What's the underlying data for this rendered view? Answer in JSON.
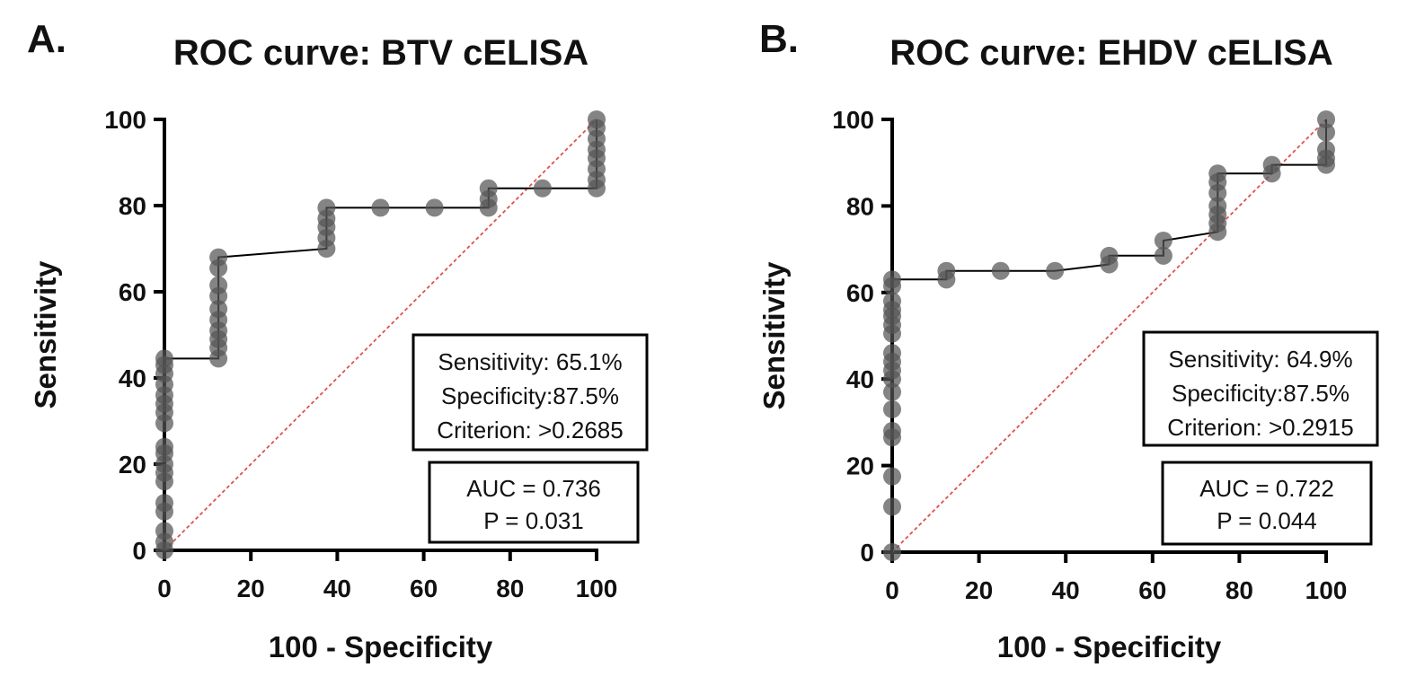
{
  "chart_data": [
    {
      "type": "line",
      "panel_letter": "A.",
      "title": "ROC curve: BTV cELISA",
      "xlabel": "100 - Specificity",
      "ylabel": "Sensitivity",
      "xlim": [
        0,
        100
      ],
      "ylim": [
        0,
        100
      ],
      "x_ticks": [
        "0",
        "20",
        "40",
        "60",
        "80",
        "100"
      ],
      "y_ticks": [
        "0",
        "20",
        "40",
        "60",
        "80",
        "100"
      ],
      "grid": false,
      "reference_line_color": "#e05050",
      "curve_color": "#000000",
      "marker_color": "#555555",
      "roc_points": [
        [
          0,
          0
        ],
        [
          0,
          2
        ],
        [
          0,
          4.5
        ],
        [
          0,
          9
        ],
        [
          0,
          11
        ],
        [
          0,
          16
        ],
        [
          0,
          18
        ],
        [
          0,
          20
        ],
        [
          0,
          22.5
        ],
        [
          0,
          24
        ],
        [
          0,
          29.5
        ],
        [
          0,
          32
        ],
        [
          0,
          34
        ],
        [
          0,
          36
        ],
        [
          0,
          38.5
        ],
        [
          0,
          41
        ],
        [
          0,
          43
        ],
        [
          0,
          44.5
        ],
        [
          12.5,
          44.5
        ],
        [
          12.5,
          47
        ],
        [
          12.5,
          49
        ],
        [
          12.5,
          51
        ],
        [
          12.5,
          53.5
        ],
        [
          12.5,
          56
        ],
        [
          12.5,
          59
        ],
        [
          12.5,
          61.5
        ],
        [
          12.5,
          65.5
        ],
        [
          12.5,
          68
        ],
        [
          37.5,
          70
        ],
        [
          37.5,
          72.5
        ],
        [
          37.5,
          75
        ],
        [
          37.5,
          77
        ],
        [
          37.5,
          79.5
        ],
        [
          50,
          79.5
        ],
        [
          62.5,
          79.5
        ],
        [
          75,
          79.5
        ],
        [
          75,
          81.5
        ],
        [
          75,
          84
        ],
        [
          87.5,
          84
        ],
        [
          100,
          84
        ],
        [
          100,
          86
        ],
        [
          100,
          88.5
        ],
        [
          100,
          91
        ],
        [
          100,
          93
        ],
        [
          100,
          95.5
        ],
        [
          100,
          98
        ],
        [
          100,
          100
        ]
      ],
      "stats_box": [
        "Sensitivity: 65.1%",
        "Specificity:87.5%",
        "Criterion: >0.2685"
      ],
      "auc_box": [
        "AUC = 0.736",
        "P = 0.031"
      ]
    },
    {
      "type": "line",
      "panel_letter": "B.",
      "title": "ROC curve: EHDV cELISA",
      "xlabel": "100 - Specificity",
      "ylabel": "Sensitivity",
      "xlim": [
        0,
        100
      ],
      "ylim": [
        0,
        100
      ],
      "x_ticks": [
        "0",
        "20",
        "40",
        "60",
        "80",
        "100"
      ],
      "y_ticks": [
        "0",
        "20",
        "40",
        "60",
        "80",
        "100"
      ],
      "grid": false,
      "reference_line_color": "#e05050",
      "curve_color": "#000000",
      "marker_color": "#555555",
      "roc_points": [
        [
          0,
          0
        ],
        [
          0,
          10.5
        ],
        [
          0,
          17.5
        ],
        [
          0,
          26.5
        ],
        [
          0,
          28
        ],
        [
          0,
          33
        ],
        [
          0,
          37
        ],
        [
          0,
          40
        ],
        [
          0,
          42
        ],
        [
          0,
          44
        ],
        [
          0,
          46
        ],
        [
          0,
          50.5
        ],
        [
          0,
          52.5
        ],
        [
          0,
          54.5
        ],
        [
          0,
          56
        ],
        [
          0,
          58
        ],
        [
          0,
          61.5
        ],
        [
          0,
          63
        ],
        [
          12.5,
          63
        ],
        [
          12.5,
          65
        ],
        [
          25,
          65
        ],
        [
          37.5,
          65
        ],
        [
          50,
          66.5
        ],
        [
          50,
          68.5
        ],
        [
          62.5,
          68.5
        ],
        [
          62.5,
          72
        ],
        [
          75,
          74
        ],
        [
          75,
          76
        ],
        [
          75,
          78
        ],
        [
          75,
          80
        ],
        [
          75,
          83
        ],
        [
          75,
          85.5
        ],
        [
          75,
          87.5
        ],
        [
          87.5,
          87.5
        ],
        [
          87.5,
          89.5
        ],
        [
          100,
          89.5
        ],
        [
          100,
          91
        ],
        [
          100,
          93
        ],
        [
          100,
          97
        ],
        [
          100,
          100
        ]
      ],
      "stats_box": [
        "Sensitivity: 64.9%",
        "Specificity:87.5%",
        "Criterion: >0.2915"
      ],
      "auc_box": [
        "AUC = 0.722",
        "P = 0.044"
      ]
    }
  ]
}
